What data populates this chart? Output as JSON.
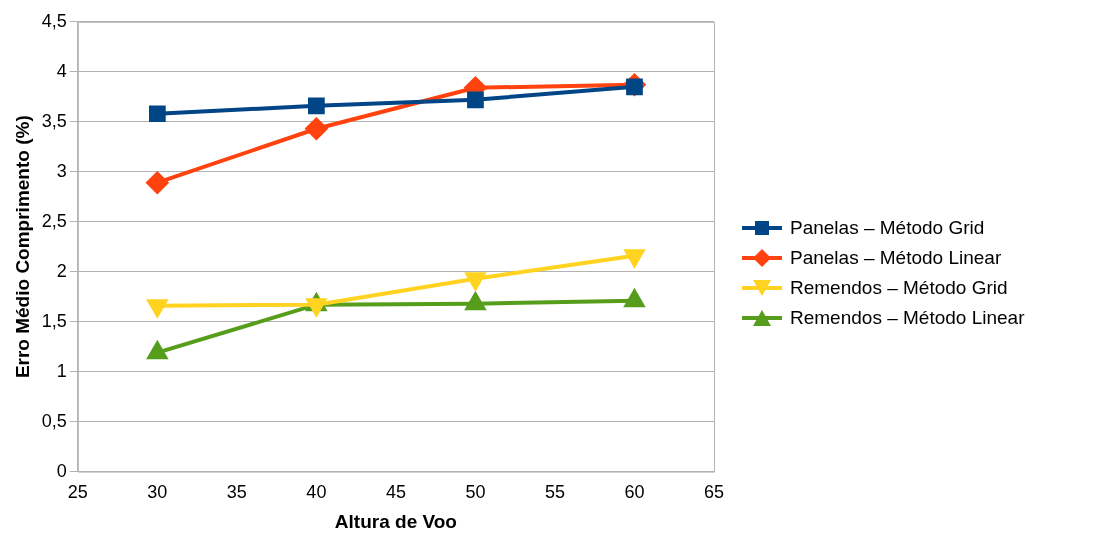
{
  "chart_data": {
    "type": "line",
    "xlabel": "Altura de Voo",
    "ylabel": "Erro Médio Comprimento (%)",
    "x": [
      30,
      40,
      50,
      60
    ],
    "xlim": [
      25,
      65
    ],
    "xticks": [
      25,
      30,
      35,
      40,
      45,
      50,
      55,
      60,
      65
    ],
    "ylim": [
      0,
      4.5
    ],
    "yticks": [
      0,
      {
        "value": 0.5,
        "label": "0,5"
      },
      1,
      {
        "value": 1.5,
        "label": "1,5"
      },
      2,
      {
        "value": 2.5,
        "label": "2,5"
      },
      3,
      {
        "value": 3.5,
        "label": "3,5"
      },
      4,
      {
        "value": 4.5,
        "label": "4,5"
      }
    ],
    "grid": "y",
    "legend": "right",
    "line_style": "solid",
    "series": [
      {
        "name": "Panelas – Método Grid",
        "color": "#004586",
        "marker": "square",
        "values": [
          3.58,
          3.66,
          3.72,
          3.85
        ]
      },
      {
        "name": "Panelas – Método Linear",
        "color": "#ff420e",
        "marker": "diamond",
        "values": [
          2.89,
          3.43,
          3.84,
          3.87
        ]
      },
      {
        "name": "Remendos – Método Grid",
        "color": "#ffd320",
        "marker": "triangle-down",
        "values": [
          1.66,
          1.67,
          1.93,
          2.16
        ]
      },
      {
        "name": "Remendos – Método Linear",
        "color": "#579d1c",
        "marker": "triangle",
        "values": [
          1.19,
          1.67,
          1.68,
          1.71
        ]
      }
    ]
  }
}
